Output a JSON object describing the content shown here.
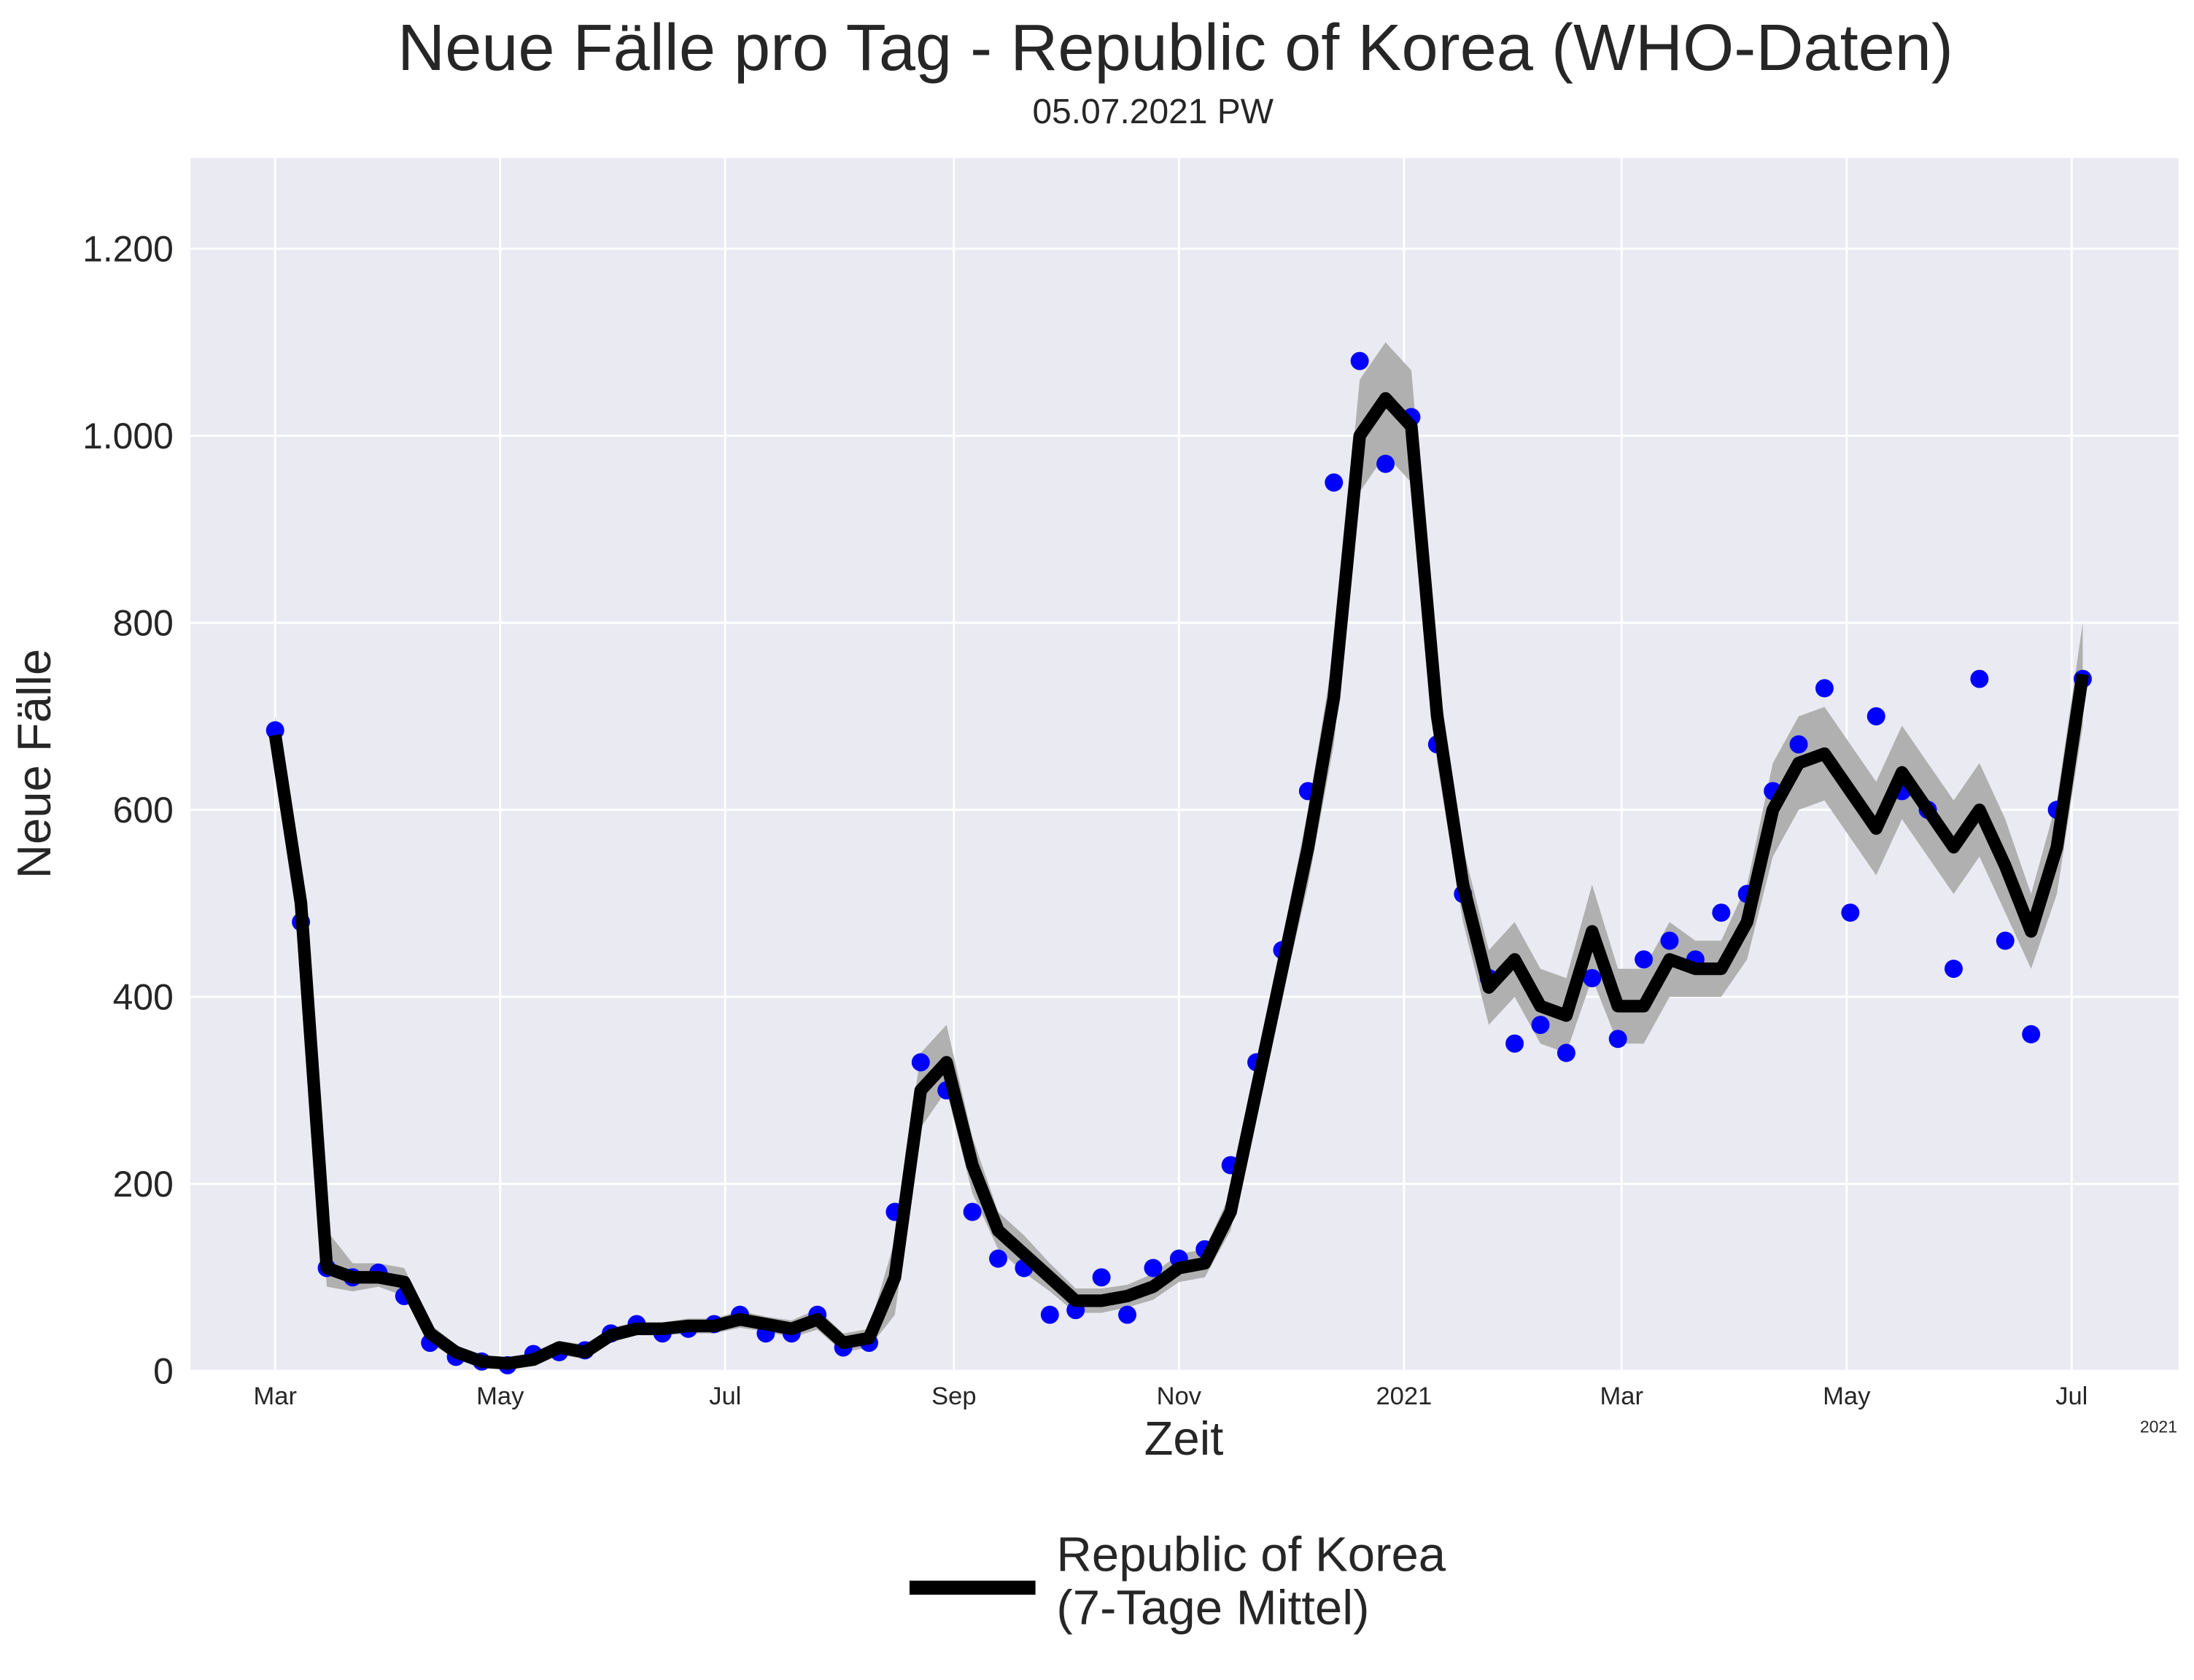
{
  "chart_data": {
    "type": "line",
    "title": "Neue Fälle pro Tag - Republic of Korea (WHO-Daten)",
    "subtitle": "05.07.2021 PW",
    "x_label": "Zeit",
    "y_label": "Neue Fälle",
    "x_offset_label": "2021",
    "x": [
      "2020-03-01",
      "2020-03-08",
      "2020-03-15",
      "2020-03-22",
      "2020-03-29",
      "2020-04-05",
      "2020-04-12",
      "2020-04-19",
      "2020-04-26",
      "2020-05-03",
      "2020-05-10",
      "2020-05-17",
      "2020-05-24",
      "2020-05-31",
      "2020-06-07",
      "2020-06-14",
      "2020-06-21",
      "2020-06-28",
      "2020-07-05",
      "2020-07-12",
      "2020-07-19",
      "2020-07-26",
      "2020-08-02",
      "2020-08-09",
      "2020-08-16",
      "2020-08-23",
      "2020-08-30",
      "2020-09-06",
      "2020-09-13",
      "2020-09-20",
      "2020-09-27",
      "2020-10-04",
      "2020-10-11",
      "2020-10-18",
      "2020-10-25",
      "2020-11-01",
      "2020-11-08",
      "2020-11-15",
      "2020-11-22",
      "2020-11-29",
      "2020-12-06",
      "2020-12-13",
      "2020-12-20",
      "2020-12-27",
      "2021-01-03",
      "2021-01-10",
      "2021-01-17",
      "2021-01-24",
      "2021-01-31",
      "2021-02-07",
      "2021-02-14",
      "2021-02-21",
      "2021-02-28",
      "2021-03-07",
      "2021-03-14",
      "2021-03-21",
      "2021-03-28",
      "2021-04-04",
      "2021-04-11",
      "2021-04-18",
      "2021-04-25",
      "2021-05-02",
      "2021-05-09",
      "2021-05-16",
      "2021-05-23",
      "2021-05-30",
      "2021-06-06",
      "2021-06-13",
      "2021-06-20",
      "2021-06-27",
      "2021-07-04"
    ],
    "series": [
      {
        "name": "Republic of Korea\n(7-Tage Mittel)",
        "color": "#000000",
        "values": [
          680,
          500,
          110,
          100,
          100,
          95,
          40,
          20,
          10,
          8,
          12,
          25,
          20,
          38,
          45,
          45,
          48,
          48,
          55,
          50,
          45,
          55,
          30,
          35,
          100,
          300,
          330,
          220,
          150,
          125,
          100,
          75,
          75,
          80,
          90,
          110,
          115,
          170,
          300,
          430,
          560,
          720,
          1000,
          1040,
          1010,
          700,
          520,
          410,
          440,
          390,
          380,
          470,
          390,
          390,
          440,
          430,
          430,
          480,
          600,
          650,
          660,
          620,
          580,
          640,
          600,
          560,
          600,
          540,
          470,
          560,
          745
        ]
      }
    ],
    "points": {
      "color": "#0000ff",
      "values": [
        685,
        480,
        110,
        100,
        105,
        80,
        30,
        15,
        10,
        6,
        18,
        20,
        22,
        40,
        50,
        40,
        45,
        50,
        60,
        40,
        40,
        60,
        25,
        30,
        170,
        330,
        300,
        170,
        120,
        110,
        60,
        65,
        100,
        60,
        110,
        120,
        130,
        220,
        330,
        450,
        620,
        950,
        1080,
        970,
        1020,
        670,
        510,
        420,
        350,
        370,
        340,
        420,
        355,
        440,
        460,
        440,
        490,
        510,
        620,
        670,
        730,
        490,
        700,
        620,
        600,
        430,
        740,
        460,
        360,
        600,
        740
      ]
    },
    "band": {
      "color": "#b0b0b0",
      "lower": [
        660,
        470,
        90,
        85,
        90,
        80,
        30,
        12,
        5,
        4,
        6,
        18,
        12,
        30,
        38,
        38,
        40,
        40,
        46,
        42,
        36,
        44,
        20,
        25,
        60,
        260,
        300,
        190,
        130,
        105,
        85,
        62,
        62,
        68,
        76,
        95,
        100,
        150,
        270,
        400,
        520,
        670,
        940,
        980,
        950,
        650,
        480,
        370,
        400,
        350,
        340,
        420,
        350,
        350,
        400,
        400,
        400,
        440,
        550,
        600,
        610,
        570,
        530,
        590,
        550,
        510,
        550,
        490,
        430,
        510,
        690
      ],
      "upper": [
        700,
        540,
        150,
        115,
        115,
        110,
        50,
        28,
        15,
        12,
        18,
        32,
        28,
        46,
        52,
        52,
        56,
        56,
        64,
        58,
        54,
        66,
        40,
        45,
        140,
        340,
        370,
        250,
        170,
        145,
        115,
        88,
        88,
        92,
        104,
        125,
        130,
        190,
        330,
        460,
        600,
        770,
        1060,
        1100,
        1070,
        750,
        560,
        450,
        480,
        430,
        420,
        520,
        430,
        430,
        480,
        460,
        460,
        520,
        650,
        700,
        710,
        670,
        630,
        690,
        650,
        610,
        650,
        590,
        510,
        610,
        800
      ]
    },
    "xlim": [
      "2020-02-07",
      "2021-07-30"
    ],
    "xticks": [
      {
        "value": "2020-03-01",
        "label": "Mar"
      },
      {
        "value": "2020-05-01",
        "label": "May"
      },
      {
        "value": "2020-07-01",
        "label": "Jul"
      },
      {
        "value": "2020-09-01",
        "label": "Sep"
      },
      {
        "value": "2020-11-01",
        "label": "Nov"
      },
      {
        "value": "2021-01-01",
        "label": "2021"
      },
      {
        "value": "2021-03-01",
        "label": "Mar"
      },
      {
        "value": "2021-05-01",
        "label": "May"
      },
      {
        "value": "2021-07-01",
        "label": "Jul"
      }
    ],
    "ylim": [
      0,
      1297
    ],
    "yticks": [
      0,
      200,
      400,
      600,
      800,
      {
        "value": 1000,
        "label": "1.000"
      },
      {
        "value": 1200,
        "label": "1.200"
      }
    ],
    "grid": true
  }
}
